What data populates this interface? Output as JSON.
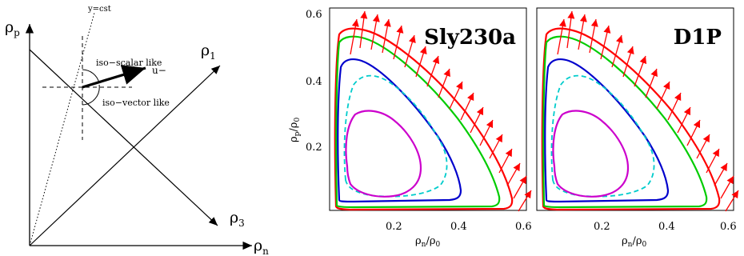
{
  "diagram": {
    "axis_p_label": "ρ",
    "axis_p_sub": "p",
    "axis_n_label": "ρ",
    "axis_n_sub": "n",
    "axis_1_label": "ρ",
    "axis_1_sub": "1",
    "axis_3_label": "ρ",
    "axis_3_sub": "3",
    "ycst_label": "y=cst",
    "isoscalar_label": "iso−scalar like",
    "isovector_label": "iso−vector like",
    "u_label": "u−"
  },
  "chart_data": [
    {
      "type": "line",
      "title": "Sly230a",
      "xlabel": "ρn/ρ0",
      "ylabel": "ρp/ρ0",
      "xlim": [
        0,
        0.62
      ],
      "ylim": [
        0,
        0.62
      ],
      "xticks": [
        "0.2",
        "0.4",
        "0.6"
      ],
      "yticks": [
        "0.2",
        "0.4",
        "0.6"
      ],
      "series": [
        {
          "color": "#ff0000",
          "values_x": [
            0.02,
            0.04,
            0.1,
            0.2,
            0.3,
            0.4,
            0.5,
            0.55,
            0.54,
            0.4,
            0.2,
            0.05,
            0.02
          ],
          "values_y": [
            0.02,
            0.45,
            0.55,
            0.5,
            0.42,
            0.28,
            0.1,
            0.03,
            0.01,
            0.01,
            0.01,
            0.01,
            0.02
          ]
        },
        {
          "color": "#00cc00",
          "values_x": [
            0.02,
            0.04,
            0.1,
            0.2,
            0.3,
            0.4,
            0.48,
            0.52,
            0.5,
            0.4,
            0.2,
            0.05,
            0.02
          ],
          "values_y": [
            0.02,
            0.43,
            0.53,
            0.48,
            0.4,
            0.26,
            0.09,
            0.03,
            0.015,
            0.015,
            0.015,
            0.015,
            0.02
          ]
        },
        {
          "color": "#0000cc",
          "values_x": [
            0.03,
            0.05,
            0.15,
            0.25,
            0.35,
            0.43,
            0.45,
            0.4,
            0.2,
            0.05,
            0.03
          ],
          "values_y": [
            0.05,
            0.38,
            0.45,
            0.38,
            0.25,
            0.1,
            0.03,
            0.02,
            0.02,
            0.02,
            0.05
          ]
        },
        {
          "color": "#00cccc",
          "style": "dashed",
          "values_x": [
            0.06,
            0.1,
            0.2,
            0.3,
            0.38,
            0.35,
            0.25,
            0.1,
            0.06
          ],
          "values_y": [
            0.1,
            0.35,
            0.4,
            0.32,
            0.18,
            0.08,
            0.04,
            0.04,
            0.1
          ]
        },
        {
          "color": "#cc00cc",
          "values_x": [
            0.06,
            0.1,
            0.2,
            0.28,
            0.31,
            0.25,
            0.12,
            0.06
          ],
          "values_y": [
            0.12,
            0.27,
            0.3,
            0.22,
            0.12,
            0.06,
            0.06,
            0.12
          ]
        }
      ]
    },
    {
      "type": "line",
      "title": "D1P",
      "xlabel": "ρn/ρ0",
      "ylabel": "",
      "xlim": [
        0,
        0.62
      ],
      "ylim": [
        0,
        0.62
      ],
      "xticks": [
        "0.2",
        "0.4",
        "0.6"
      ],
      "yticks": [],
      "series": [
        {
          "color": "#ff0000"
        },
        {
          "color": "#00cc00"
        },
        {
          "color": "#0000cc"
        },
        {
          "color": "#00cccc",
          "style": "dashed"
        },
        {
          "color": "#cc00cc"
        }
      ]
    }
  ],
  "colors": {
    "arrow": "#ff0000",
    "frame": "#000000"
  }
}
